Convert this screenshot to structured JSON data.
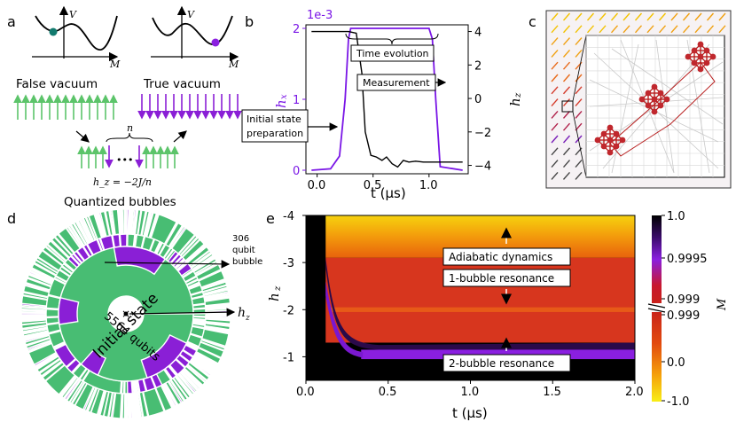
{
  "panel_labels": {
    "a": "a",
    "b": "b",
    "c": "c",
    "d": "d",
    "e": "e"
  },
  "panel_a": {
    "v_axis": "V",
    "m_axis": "M",
    "false_vacuum": "False vacuum",
    "true_vacuum": "True vacuum",
    "n_label": "n",
    "dots": "•••",
    "hz_formula": "h_z = −2J/n",
    "colors": {
      "green": "#5cc46a",
      "purple": "#8a1fd6",
      "teal": "#127a6e",
      "dot_purple": "#8b1fe0"
    }
  },
  "panel_b": {
    "scale_label": "1e-3",
    "left_ylabel": "h",
    "left_ylabel_sub": "x",
    "right_ylabel": "h",
    "right_ylabel_sub": "z",
    "xlabel": "t (μs)",
    "annotations": {
      "time_evolution": "Time evolution",
      "measurement": "Measurement",
      "initial_line1": "Initial state",
      "initial_line2": "preparation"
    },
    "colors": {
      "hx": "#7a16e6",
      "hz": "#000000"
    },
    "chart_data": {
      "type": "line",
      "title": "",
      "xlabel": "t (μs)",
      "x_ticks": [
        "0.0",
        "0.5",
        "1.0"
      ],
      "xlim": [
        -0.1,
        1.35
      ],
      "left_ticks": [
        "0",
        "1",
        "2"
      ],
      "left_ylim": [
        -0.05,
        2.05
      ],
      "right_ticks": [
        "4",
        "2",
        "0",
        "−2",
        "−4"
      ],
      "right_ylim": [
        -4.5,
        4.4
      ],
      "series": [
        {
          "name": "h_x (×1e-3)",
          "axis": "left",
          "x": [
            -0.05,
            0.12,
            0.2,
            0.25,
            0.28,
            0.3,
            0.6,
            1.0,
            1.03,
            1.06,
            1.1,
            1.3
          ],
          "y": [
            0,
            0.02,
            0.2,
            1.0,
            1.85,
            2.0,
            2.0,
            2.0,
            1.85,
            1.0,
            0.05,
            0
          ]
        },
        {
          "name": "h_z",
          "axis": "right",
          "x": [
            -0.05,
            0.28,
            0.35,
            0.4,
            0.43,
            0.48,
            0.53,
            0.58,
            0.62,
            0.67,
            0.72,
            0.77,
            0.82,
            0.88,
            0.95,
            1.05,
            1.12,
            1.3
          ],
          "y": [
            4.0,
            4.0,
            3.9,
            1.5,
            -2.0,
            -3.4,
            -3.5,
            -3.7,
            -3.5,
            -3.9,
            -4.1,
            -3.7,
            -3.8,
            -3.75,
            -3.8,
            -3.8,
            -3.8,
            -3.8
          ]
        }
      ]
    }
  },
  "panel_d": {
    "title": "Quantized bubbles",
    "initial_state": "Initial state",
    "qubits": "5564 qubits",
    "bubble_line1": "306",
    "bubble_line2": "qubit",
    "bubble_line3": "bubble",
    "hz_label": "h",
    "hz_sub": "z",
    "colors": {
      "green": "#48bd73",
      "purple": "#8a1fd6"
    }
  },
  "panel_e": {
    "ylabel": "h",
    "ylabel_sub": "z",
    "xlabel": "t (μs)",
    "adiabatic": "Adiabatic dynamics",
    "one_bubble": "1-bubble resonance",
    "two_bubble": "2-bubble resonance",
    "colorbar_label": "M",
    "chart_data": {
      "type": "heatmap",
      "title": "",
      "xlabel": "t (μs)",
      "ylabel": "h_z",
      "x_ticks": [
        "0.0",
        "0.5",
        "1.0",
        "1.5",
        "2.0"
      ],
      "xlim": [
        0.0,
        2.0
      ],
      "y_ticks": [
        "-4",
        "-3",
        "-2",
        "-1"
      ],
      "ylim": [
        -4.0,
        -0.5
      ],
      "bands_hz": [
        {
          "name": "2-bubble resonance",
          "hz_start": -1.15,
          "hz_end": -0.95
        },
        {
          "name": "1-bubble resonance",
          "hz_start": -2.05,
          "hz_end": -1.95
        }
      ],
      "colorbar_upper_ticks": [
        "1.0",
        "0.9995",
        "0.999"
      ],
      "colorbar_upper_range": [
        0.999,
        1.0
      ],
      "colorbar_lower_ticks": [
        "0.999",
        "0.0",
        "-1.0"
      ],
      "colorbar_lower_range": [
        -1.0,
        0.999
      ]
    }
  }
}
